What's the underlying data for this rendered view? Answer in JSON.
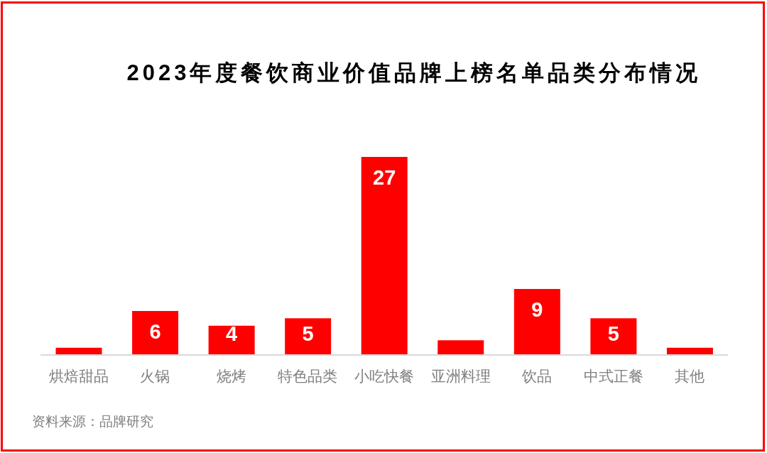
{
  "chart_data": {
    "type": "bar",
    "title": "2023年度餐饮商业价值品牌上榜名单品类分布情况",
    "categories": [
      "烘焙甜品",
      "火锅",
      "烧烤",
      "特色品类",
      "小吃快餐",
      "亚洲料理",
      "饮品",
      "中式正餐",
      "其他"
    ],
    "values": [
      1,
      6,
      4,
      5,
      27,
      2,
      9,
      5,
      1
    ],
    "value_labels": [
      null,
      "6",
      "4",
      "5",
      "27",
      null,
      "9",
      "5",
      null
    ],
    "color": "#ff0000",
    "tick_labels": "x",
    "annotations": [
      "资料来源：品牌研究"
    ]
  }
}
